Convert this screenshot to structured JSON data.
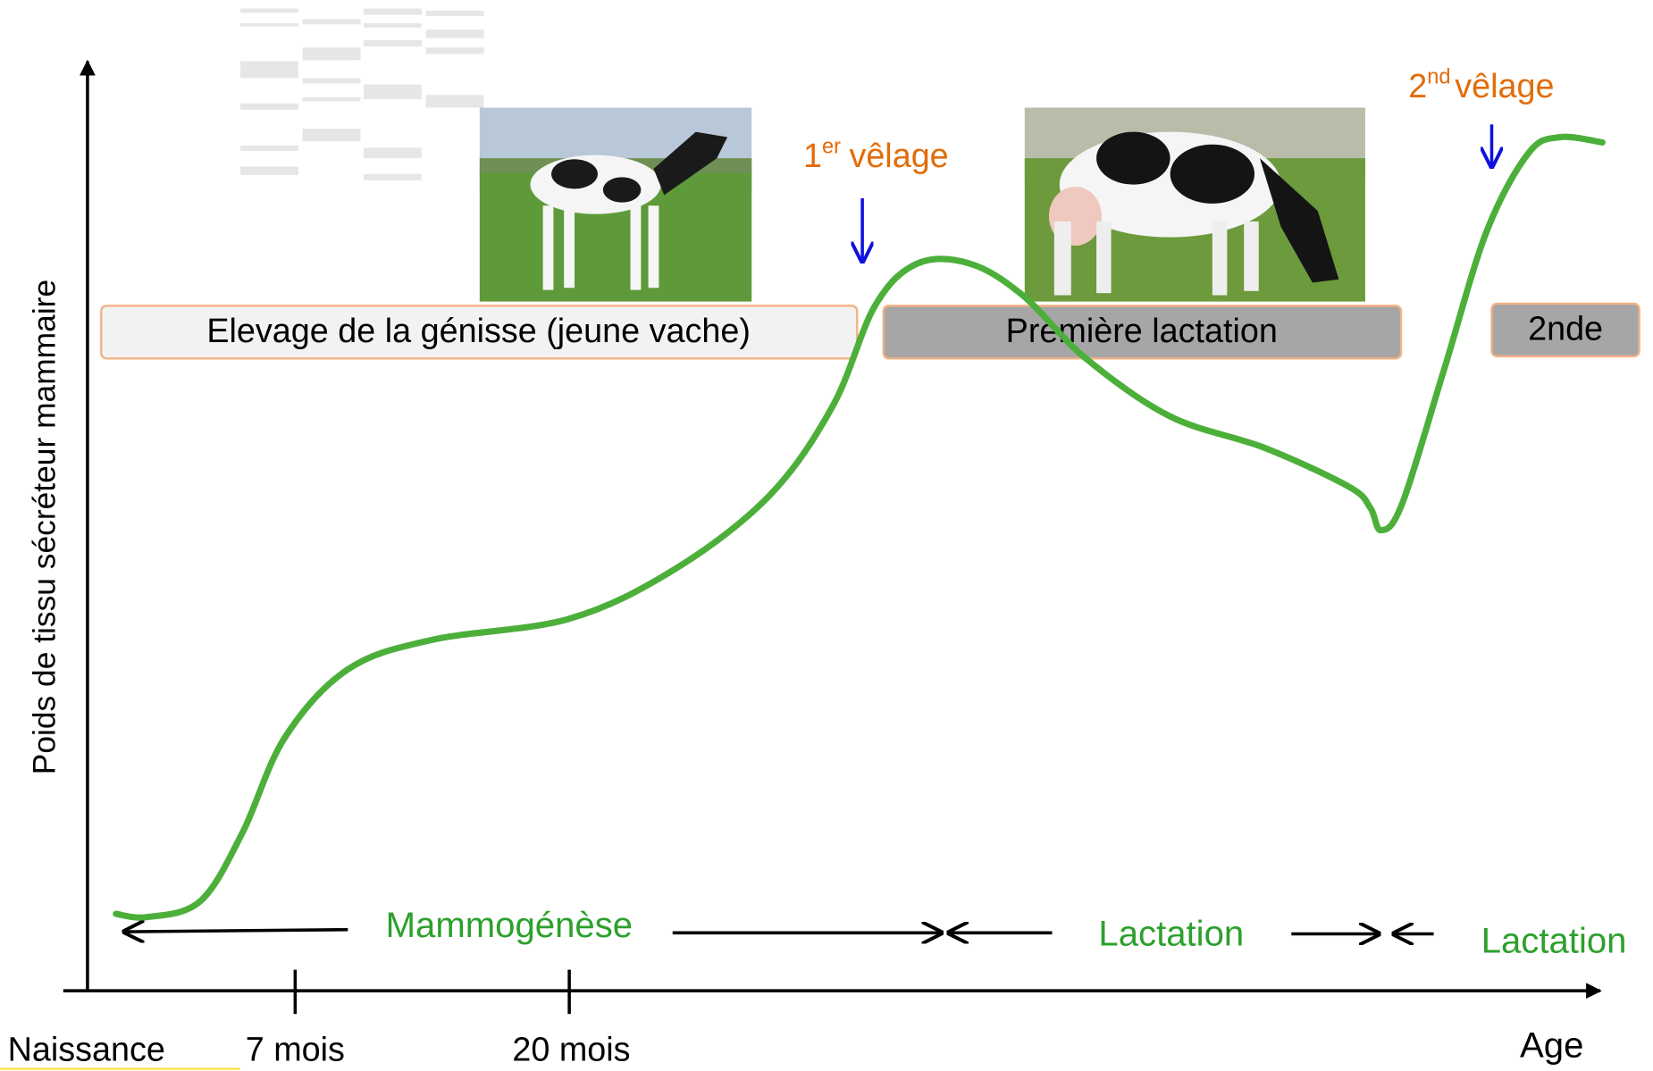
{
  "axes": {
    "y_label": "Poids de tissu sécréteur mammaire",
    "x_label": "Age",
    "x_ticks": [
      "Naissance",
      "7 mois",
      "20 mois"
    ]
  },
  "phases": [
    "Elevage de la génisse (jeune vache)",
    "Première lactation",
    "2nde"
  ],
  "events": [
    {
      "number": "1",
      "suffix": "er",
      "label": "vêlage"
    },
    {
      "number": "2",
      "suffix": "nd",
      "label": "vêlage"
    }
  ],
  "periods": [
    "Mammogénèse",
    "Lactation",
    "Lactation"
  ]
}
